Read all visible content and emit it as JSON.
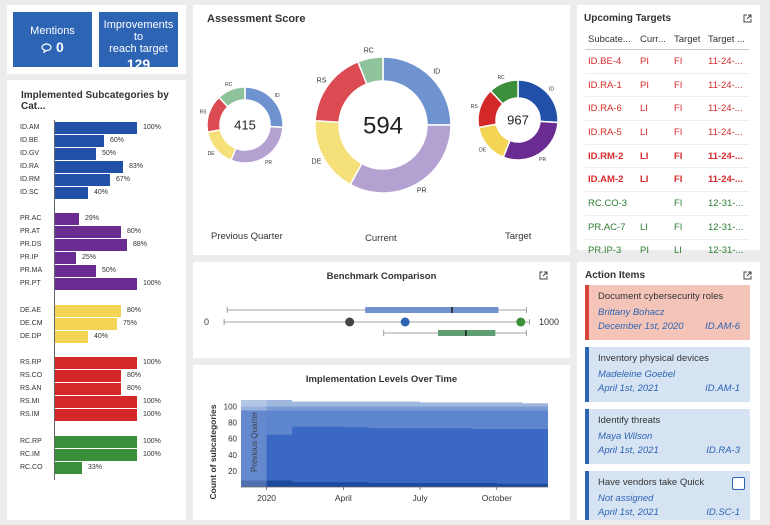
{
  "tiles": {
    "mentions_label": "Mentions",
    "mentions_value": "0",
    "improve_label_1": "Improvements to",
    "improve_label_2": "reach target",
    "improve_value": "129"
  },
  "implemented": {
    "title": "Implemented Subcategories by Cat...",
    "rows": [
      {
        "label": "ID.AM",
        "value": 100,
        "pct": "100%"
      },
      {
        "label": "ID.BE",
        "value": 60,
        "pct": "60%"
      },
      {
        "label": "ID.GV",
        "value": 50,
        "pct": "50%"
      },
      {
        "label": "ID.RA",
        "value": 83,
        "pct": "83%"
      },
      {
        "label": "ID.RM",
        "value": 67,
        "pct": "67%"
      },
      {
        "label": "ID.SC",
        "value": 40,
        "pct": "40%"
      },
      {
        "label": "PR.AC",
        "value": 29,
        "pct": "29%"
      },
      {
        "label": "PR.AT",
        "value": 80,
        "pct": "80%"
      },
      {
        "label": "PR.DS",
        "value": 88,
        "pct": "88%"
      },
      {
        "label": "PR.IP",
        "value": 25,
        "pct": "25%"
      },
      {
        "label": "PR.MA",
        "value": 50,
        "pct": "50%"
      },
      {
        "label": "PR.PT",
        "value": 100,
        "pct": "100%"
      },
      {
        "label": "DE.AE",
        "value": 80,
        "pct": "80%"
      },
      {
        "label": "DE.CM",
        "value": 75,
        "pct": "75%"
      },
      {
        "label": "DE.DP",
        "value": 40,
        "pct": "40%"
      },
      {
        "label": "RS.RP",
        "value": 100,
        "pct": "100%"
      },
      {
        "label": "RS.CO",
        "value": 80,
        "pct": "80%"
      },
      {
        "label": "RS.AN",
        "value": 80,
        "pct": "80%"
      },
      {
        "label": "RS.MI",
        "value": 100,
        "pct": "100%"
      },
      {
        "label": "RS.IM",
        "value": 100,
        "pct": "100%"
      },
      {
        "label": "RC.RP",
        "value": 100,
        "pct": "100%"
      },
      {
        "label": "RC.IM",
        "value": 100,
        "pct": "100%"
      },
      {
        "label": "RC.CO",
        "value": 33,
        "pct": "33%"
      }
    ]
  },
  "assessment": {
    "title": "Assessment Score",
    "previous": {
      "score": "415",
      "caption": "Previous Quarter"
    },
    "current": {
      "score": "594",
      "caption": "Current"
    },
    "target": {
      "score": "967",
      "caption": "Target"
    },
    "segment_labels": [
      "ID",
      "PR",
      "DE",
      "RS",
      "RC"
    ]
  },
  "upcoming": {
    "title": "Upcoming Targets",
    "headers": [
      "Subcate...",
      "Curr...",
      "Target",
      "Target ..."
    ],
    "rows": [
      {
        "sub": "ID.BE-4",
        "cur": "PI",
        "tgt": "FI",
        "date": "11-24-..."
      },
      {
        "sub": "ID.RA-1",
        "cur": "PI",
        "tgt": "FI",
        "date": "11-24-..."
      },
      {
        "sub": "ID.RA-6",
        "cur": "LI",
        "tgt": "FI",
        "date": "11-24-..."
      },
      {
        "sub": "ID.RA-5",
        "cur": "LI",
        "tgt": "FI",
        "date": "11-24-..."
      },
      {
        "sub": "ID.RM-2",
        "cur": "LI",
        "tgt": "FI",
        "date": "11-24-..."
      },
      {
        "sub": "ID.AM-2",
        "cur": "LI",
        "tgt": "FI",
        "date": "11-24-..."
      },
      {
        "sub": "RC.CO-3",
        "cur": "",
        "tgt": "FI",
        "date": "12-31-..."
      },
      {
        "sub": "PR.AC-7",
        "cur": "LI",
        "tgt": "FI",
        "date": "12-31-..."
      },
      {
        "sub": "PR.IP-3",
        "cur": "PI",
        "tgt": "LI",
        "date": "12-31-..."
      }
    ]
  },
  "benchmark": {
    "title": "Benchmark Comparison",
    "min_label": "0",
    "max_label": "1000"
  },
  "levels": {
    "title": "Implementation Levels Over Time",
    "ylabel": "Count of subcategories",
    "yticks": [
      "100",
      "80",
      "60",
      "40",
      "20"
    ],
    "xticks": [
      "2020",
      "April",
      "July",
      "October"
    ],
    "annotation": "Previous Quarter"
  },
  "actions": {
    "title": "Action Items",
    "items": [
      {
        "title": "Document cybersecurity roles",
        "person": "Brittany Bohacz",
        "date": "December 1st, 2020",
        "ref": "ID.AM-6"
      },
      {
        "title": "Inventory physical devices",
        "person": "Madeleine Goebel",
        "date": "April 1st, 2021",
        "ref": "ID.AM-1"
      },
      {
        "title": "Identify threats",
        "person": "Maya Wilson",
        "date": "April 1st, 2021",
        "ref": "ID.RA-3"
      },
      {
        "title": "Have vendors take Quick",
        "person": "Not assigned",
        "date": "April 1st, 2021",
        "ref": "ID.SC-1"
      }
    ]
  },
  "chart_data": [
    {
      "type": "bar",
      "title": "Implemented Subcategories by Cat...",
      "orientation": "horizontal",
      "categories": [
        "ID.AM",
        "ID.BE",
        "ID.GV",
        "ID.RA",
        "ID.RM",
        "ID.SC",
        "PR.AC",
        "PR.AT",
        "PR.DS",
        "PR.IP",
        "PR.MA",
        "PR.PT",
        "DE.AE",
        "DE.CM",
        "DE.DP",
        "RS.RP",
        "RS.CO",
        "RS.AN",
        "RS.MI",
        "RS.IM",
        "RC.RP",
        "RC.IM",
        "RC.CO"
      ],
      "values": [
        100,
        60,
        50,
        83,
        67,
        40,
        29,
        80,
        88,
        25,
        50,
        100,
        80,
        75,
        40,
        100,
        80,
        80,
        100,
        100,
        100,
        100,
        33
      ],
      "colors": {
        "ID": "#2150a8",
        "PR": "#6a2c91",
        "DE": "#f4d454",
        "RS": "#d42727",
        "RC": "#3b8f3b"
      },
      "xlim": [
        0,
        100
      ]
    },
    {
      "type": "pie",
      "title": "Assessment Score",
      "donuts": [
        {
          "caption": "Previous Quarter",
          "total": 415,
          "labels": [
            "ID",
            "PR",
            "DE",
            "RS",
            "RC"
          ],
          "values": [
            26,
            30,
            16,
            16,
            12
          ]
        },
        {
          "caption": "Current",
          "total": 594,
          "labels": [
            "ID",
            "PR",
            "DE",
            "RS",
            "RC"
          ],
          "values": [
            25,
            33,
            18,
            18,
            6
          ]
        },
        {
          "caption": "Target",
          "total": 967,
          "labels": [
            "ID",
            "PR",
            "DE",
            "RS",
            "RC"
          ],
          "values": [
            26,
            30,
            16,
            16,
            12
          ]
        }
      ],
      "colors": {
        "ID": "#6e93cf",
        "PR": "#b3a1d2",
        "DE": "#f6e07a",
        "RS": "#dc4a52",
        "RC": "#8ec39b"
      },
      "target_colors": {
        "ID": "#2150a8",
        "PR": "#6a2c91",
        "DE": "#f4d454",
        "RS": "#d42727",
        "RC": "#3b8f3b"
      }
    },
    {
      "type": "scatter",
      "title": "Benchmark Comparison",
      "xlim": [
        0,
        1000
      ],
      "points": [
        {
          "value": 415,
          "color": "#444444"
        },
        {
          "value": 594,
          "color": "#2e64b4"
        },
        {
          "value": 967,
          "color": "#3b8f3b"
        }
      ],
      "ranges": [
        {
          "whisker": [
            20,
            985
          ],
          "box": [
            465,
            895
          ],
          "median": 745,
          "color": "#6e93cf"
        },
        {
          "whisker": [
            10,
            995
          ],
          "box": null,
          "median": null,
          "color": "#999999"
        },
        {
          "whisker": [
            525,
            985
          ],
          "box": [
            700,
            885
          ],
          "median": 790,
          "color": "#5f9f73"
        }
      ]
    },
    {
      "type": "area",
      "title": "Implementation Levels Over Time",
      "ylabel": "Count of subcategories",
      "ylim": [
        0,
        108
      ],
      "x": [
        0,
        1,
        2,
        3,
        4,
        5,
        6,
        7,
        8,
        9,
        10,
        11,
        12
      ],
      "xticks": [
        {
          "label": "2020",
          "x": 1
        },
        {
          "label": "April",
          "x": 4
        },
        {
          "label": "July",
          "x": 7
        },
        {
          "label": "October",
          "x": 10
        }
      ],
      "series": [
        {
          "values": [
            108,
            108,
            106,
            106,
            106,
            106,
            106,
            105,
            105,
            105,
            105,
            104,
            104
          ],
          "color": "#9fb7de"
        },
        {
          "values": [
            100,
            100,
            100,
            100,
            100,
            100,
            100,
            100,
            100,
            100,
            100,
            100,
            100
          ],
          "color": "#7b9cd4"
        },
        {
          "values": [
            95,
            95,
            95,
            95,
            95,
            95,
            95,
            95,
            95,
            95,
            95,
            95,
            95
          ],
          "color": "#5e86cf"
        },
        {
          "values": [
            95,
            65,
            75,
            75,
            74,
            73,
            73,
            73,
            73,
            72,
            72,
            72,
            72
          ],
          "color": "#3a68c2"
        },
        {
          "values": [
            8,
            8,
            6,
            6,
            6,
            5,
            5,
            5,
            5,
            5,
            4,
            4,
            4
          ],
          "color": "#1d4a9c"
        }
      ],
      "annotation": {
        "label": "Previous Quarter",
        "x": 0.5
      }
    }
  ]
}
